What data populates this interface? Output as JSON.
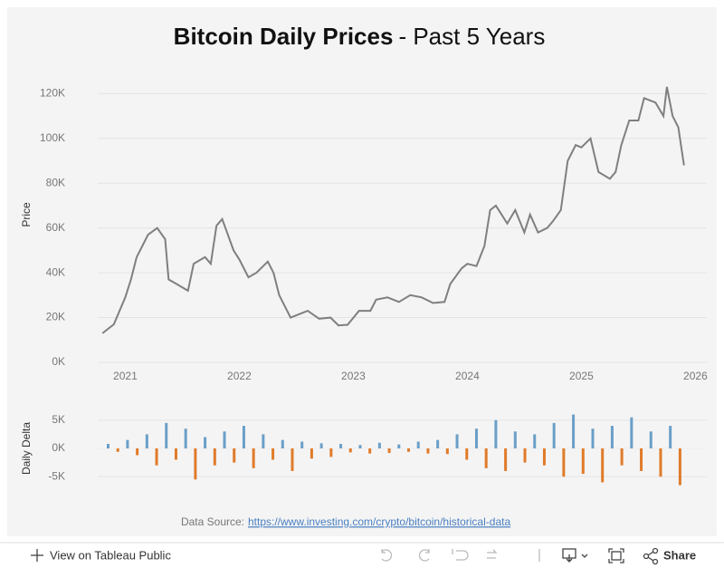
{
  "chart_data": [
    {
      "type": "line",
      "title": "Bitcoin Daily Prices",
      "subtitle": "- Past 5 Years",
      "y_label": "Price",
      "color": "#7f7f7f",
      "grid": true,
      "x": [
        2020.8,
        2020.9,
        2021.0,
        2021.05,
        2021.1,
        2021.15,
        2021.2,
        2021.28,
        2021.35,
        2021.38,
        2021.45,
        2021.55,
        2021.6,
        2021.7,
        2021.75,
        2021.8,
        2021.85,
        2021.95,
        2022.0,
        2022.08,
        2022.15,
        2022.25,
        2022.3,
        2022.35,
        2022.45,
        2022.5,
        2022.6,
        2022.7,
        2022.8,
        2022.87,
        2022.95,
        2023.05,
        2023.15,
        2023.2,
        2023.3,
        2023.4,
        2023.5,
        2023.6,
        2023.7,
        2023.8,
        2023.85,
        2023.95,
        2024.0,
        2024.08,
        2024.15,
        2024.2,
        2024.25,
        2024.35,
        2024.42,
        2024.5,
        2024.55,
        2024.62,
        2024.7,
        2024.75,
        2024.82,
        2024.88,
        2024.95,
        2025.0,
        2025.08,
        2025.15,
        2025.25,
        2025.3,
        2025.35,
        2025.42,
        2025.5,
        2025.55,
        2025.65,
        2025.72,
        2025.75,
        2025.8,
        2025.85,
        2025.9
      ],
      "values": [
        13000,
        17000,
        29000,
        37000,
        47000,
        52000,
        57000,
        60000,
        55000,
        37000,
        35000,
        32000,
        44000,
        47000,
        44000,
        61000,
        64000,
        50000,
        46000,
        38000,
        40000,
        45000,
        40000,
        30000,
        20000,
        21000,
        23000,
        19500,
        20000,
        16500,
        16800,
        23000,
        23000,
        28000,
        29000,
        27000,
        30000,
        29000,
        26500,
        27000,
        35000,
        42000,
        44000,
        43000,
        52000,
        68000,
        70000,
        62000,
        68000,
        58000,
        66000,
        58000,
        60000,
        63000,
        68000,
        90000,
        97000,
        96000,
        100000,
        85000,
        82000,
        85000,
        97000,
        108000,
        108000,
        118000,
        116000,
        110000,
        123000,
        110000,
        105000,
        88000
      ],
      "xlim": [
        2020.6,
        2026.1
      ],
      "xticks": [
        2021,
        2022,
        2023,
        2024,
        2025,
        2026
      ],
      "ylim": [
        0,
        125000
      ],
      "yticks": [
        {
          "value": 0,
          "label": "0K"
        },
        {
          "value": 20000,
          "label": "20K"
        },
        {
          "value": 40000,
          "label": "40K"
        },
        {
          "value": 60000,
          "label": "60K"
        },
        {
          "value": 80000,
          "label": "80K"
        },
        {
          "value": 100000,
          "label": "100K"
        },
        {
          "value": 120000,
          "label": "120K"
        }
      ]
    },
    {
      "type": "bar",
      "y_label": "Daily Delta",
      "positive_color": "#6a9fc8",
      "negative_color": "#e07b2a",
      "grid": true,
      "x": [
        2020.85,
        2020.935,
        2021.02,
        2021.105,
        2021.19,
        2021.275,
        2021.36,
        2021.445,
        2021.53,
        2021.615,
        2021.7,
        2021.785,
        2021.87,
        2021.955,
        2022.04,
        2022.125,
        2022.21,
        2022.295,
        2022.38,
        2022.465,
        2022.55,
        2022.635,
        2022.72,
        2022.805,
        2022.89,
        2022.975,
        2023.06,
        2023.145,
        2023.23,
        2023.315,
        2023.4,
        2023.485,
        2023.57,
        2023.655,
        2023.74,
        2023.825,
        2023.91,
        2023.995,
        2024.08,
        2024.165,
        2024.25,
        2024.335,
        2024.42,
        2024.505,
        2024.59,
        2024.675,
        2024.76,
        2024.845,
        2024.93,
        2025.015,
        2025.1,
        2025.185,
        2025.27,
        2025.355,
        2025.44,
        2025.525,
        2025.61,
        2025.695,
        2025.78,
        2025.865
      ],
      "values": [
        800,
        -600,
        1500,
        -1200,
        2500,
        -3000,
        4500,
        -2000,
        3500,
        -5500,
        2000,
        -3000,
        3000,
        -2500,
        4000,
        -3500,
        2500,
        -2000,
        1500,
        -4000,
        1200,
        -1800,
        900,
        -1500,
        800,
        -700,
        600,
        -900,
        1000,
        -800,
        700,
        -600,
        1200,
        -900,
        1500,
        -1000,
        2500,
        -2000,
        3500,
        -3500,
        5000,
        -4000,
        3000,
        -2500,
        2500,
        -3000,
        4500,
        -5000,
        6000,
        -4500,
        3500,
        -6000,
        4000,
        -3000,
        5500,
        -4000,
        3000,
        -5000,
        4000,
        -6500
      ],
      "xlim": [
        2020.6,
        2026.1
      ],
      "ylim": [
        -8500,
        8500
      ],
      "yticks": [
        {
          "value": -5000,
          "label": "-5K"
        },
        {
          "value": 0,
          "label": "0K"
        },
        {
          "value": 5000,
          "label": "5K"
        }
      ]
    }
  ],
  "data_source": {
    "label": "Data Source:",
    "url": "https://www.investing.com/crypto/bitcoin/historical-data"
  },
  "toolbar": {
    "view": "View on Tableau Public",
    "share": "Share"
  }
}
